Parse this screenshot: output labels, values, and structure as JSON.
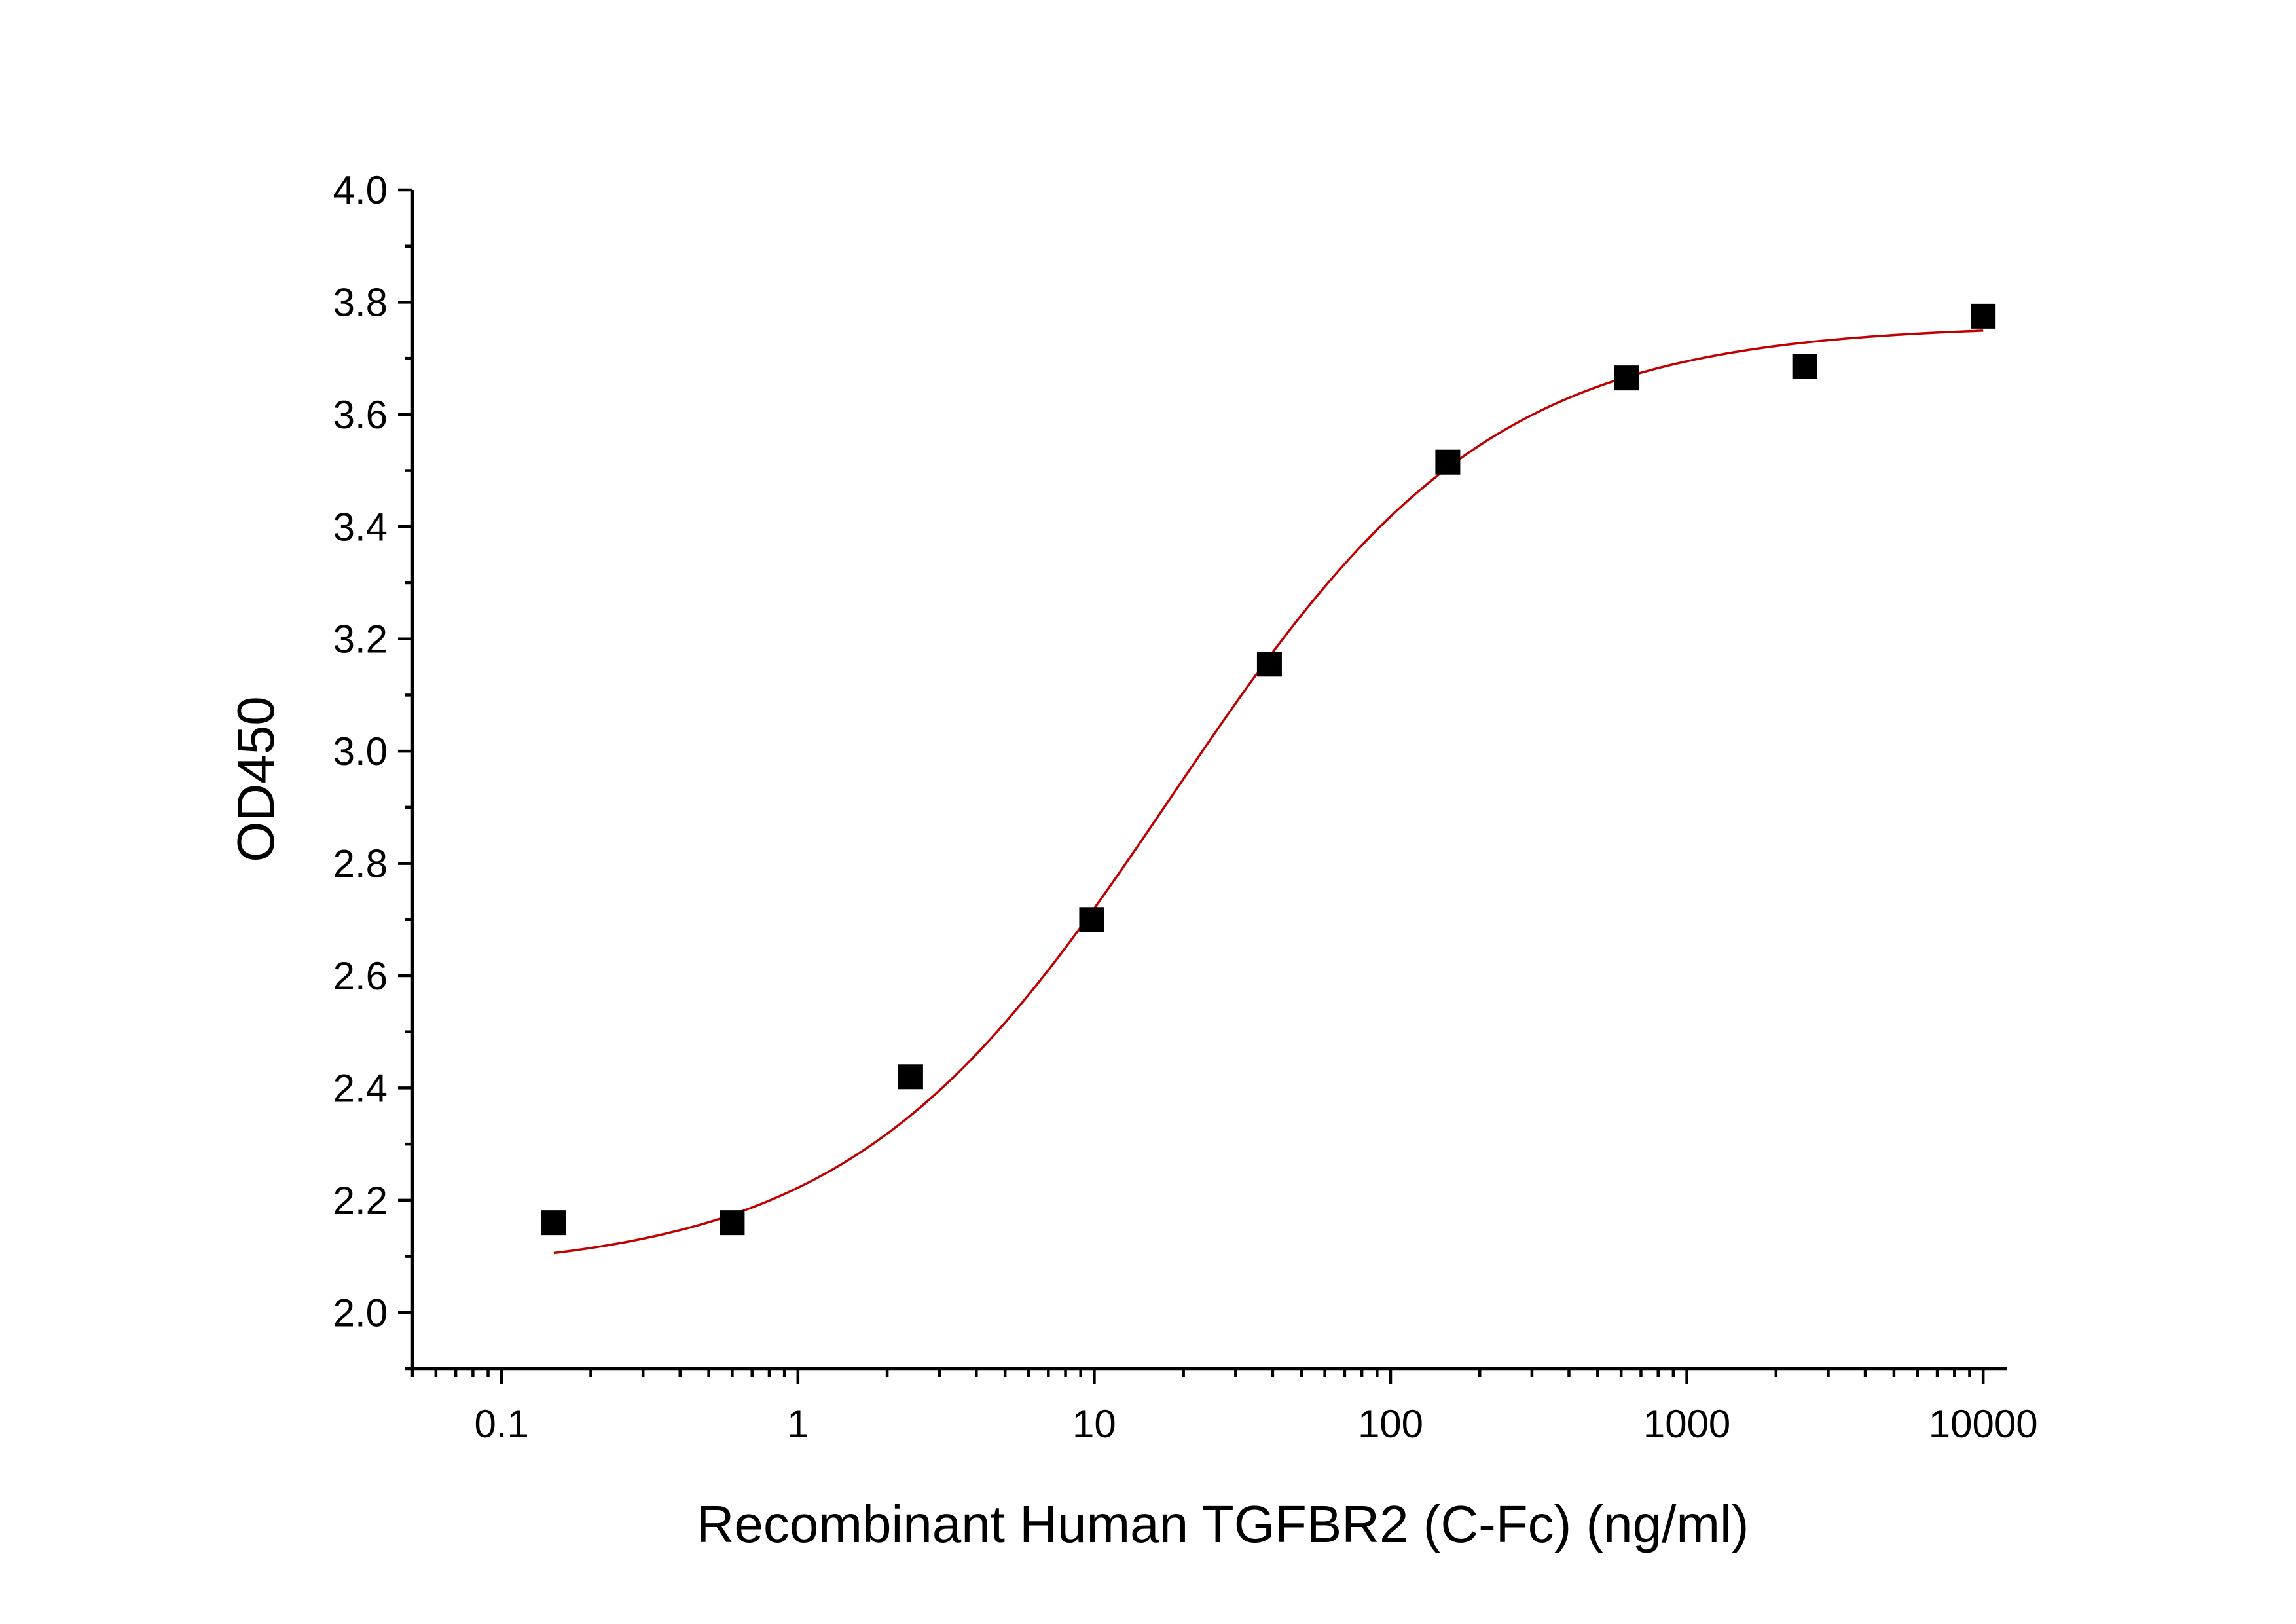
{
  "chart_data": {
    "type": "scatter",
    "xlabel": "Recombinant Human TGFBR2 (C-Fc) (ng/ml)",
    "ylabel": "OD450",
    "x_scale": "log",
    "xlim": [
      0.05,
      12000
    ],
    "ylim": [
      1.9,
      4.0
    ],
    "x_ticks": [
      "0.1",
      "1",
      "10",
      "100",
      "1000",
      "10000"
    ],
    "y_ticks": [
      "2.0",
      "2.2",
      "2.4",
      "2.6",
      "2.8",
      "3.0",
      "3.2",
      "3.4",
      "3.6",
      "3.8",
      "4.0"
    ],
    "grid": false,
    "legend": "none",
    "marker_color": "#000000",
    "fit_color": "#c00000",
    "points": [
      {
        "x": 0.15,
        "y": 2.16
      },
      {
        "x": 0.6,
        "y": 2.16
      },
      {
        "x": 2.4,
        "y": 2.42
      },
      {
        "x": 9.8,
        "y": 2.7
      },
      {
        "x": 39,
        "y": 3.155
      },
      {
        "x": 156,
        "y": 3.515
      },
      {
        "x": 625,
        "y": 3.665
      },
      {
        "x": 2500,
        "y": 3.685
      },
      {
        "x": 10000,
        "y": 3.775
      }
    ],
    "fit": {
      "model": "4PL",
      "bottom": 2.07,
      "top": 3.76,
      "ec50": 18,
      "hill": 0.8,
      "x_range": [
        0.15,
        10000
      ]
    }
  }
}
